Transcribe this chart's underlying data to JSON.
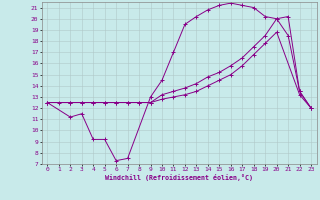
{
  "xlabel": "Windchill (Refroidissement éolien,°C)",
  "background_color": "#c8eaea",
  "grid_color": "#b0c8c8",
  "line_color": "#880088",
  "xlim": [
    -0.5,
    23.5
  ],
  "ylim": [
    7,
    21.5
  ],
  "yticks": [
    7,
    8,
    9,
    10,
    11,
    12,
    13,
    14,
    15,
    16,
    17,
    18,
    19,
    20,
    21
  ],
  "xticks": [
    0,
    1,
    2,
    3,
    4,
    5,
    6,
    7,
    8,
    9,
    10,
    11,
    12,
    13,
    14,
    15,
    16,
    17,
    18,
    19,
    20,
    21,
    22,
    23
  ],
  "line1_x": [
    0,
    2,
    3,
    4,
    5,
    6,
    7,
    9,
    10,
    11,
    12,
    13,
    14,
    15,
    16,
    17,
    18,
    19,
    20,
    21,
    22,
    23
  ],
  "line1_y": [
    12.5,
    11.2,
    11.5,
    9.2,
    9.2,
    7.3,
    7.5,
    13.0,
    14.5,
    17.0,
    19.5,
    20.2,
    20.8,
    21.2,
    21.4,
    21.2,
    21.0,
    20.2,
    20.0,
    18.5,
    13.5,
    12.0
  ],
  "line2_x": [
    0,
    1,
    2,
    3,
    4,
    5,
    6,
    7,
    8,
    9,
    10,
    11,
    12,
    13,
    14,
    15,
    16,
    17,
    18,
    19,
    20,
    22,
    23
  ],
  "line2_y": [
    12.5,
    12.5,
    12.5,
    12.5,
    12.5,
    12.5,
    12.5,
    12.5,
    12.5,
    12.5,
    12.8,
    13.0,
    13.2,
    13.5,
    14.0,
    14.5,
    15.0,
    15.8,
    16.8,
    17.8,
    18.8,
    13.2,
    12.0
  ],
  "line3_x": [
    0,
    2,
    3,
    4,
    5,
    6,
    7,
    8,
    9,
    10,
    11,
    12,
    13,
    14,
    15,
    16,
    17,
    18,
    19,
    20,
    21,
    22,
    23
  ],
  "line3_y": [
    12.5,
    12.5,
    12.5,
    12.5,
    12.5,
    12.5,
    12.5,
    12.5,
    12.5,
    13.2,
    13.5,
    13.8,
    14.2,
    14.8,
    15.2,
    15.8,
    16.5,
    17.5,
    18.5,
    20.0,
    20.2,
    13.5,
    12.0
  ]
}
